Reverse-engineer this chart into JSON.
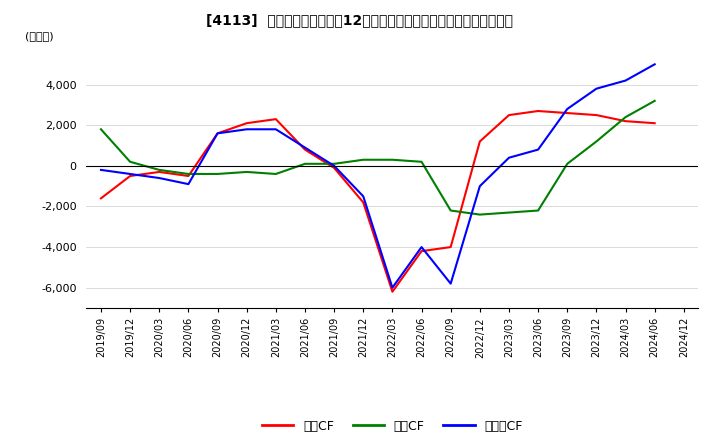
{
  "title": "[4113]  キャッシュフローの12か月移動合計の対前年同期増減額の推移",
  "ylabel": "(百万円)",
  "ylim": [
    -7000,
    6000
  ],
  "yticks": [
    -6000,
    -4000,
    -2000,
    0,
    2000,
    4000
  ],
  "legend_labels": [
    "営業CF",
    "投資CF",
    "フリーCF"
  ],
  "line_colors": [
    "#ff0000",
    "#008000",
    "#0000ff"
  ],
  "x_labels": [
    "2019/09",
    "2019/12",
    "2020/03",
    "2020/06",
    "2020/09",
    "2020/12",
    "2021/03",
    "2021/06",
    "2021/09",
    "2021/12",
    "2022/03",
    "2022/06",
    "2022/09",
    "2022/12",
    "2023/03",
    "2023/06",
    "2023/09",
    "2023/12",
    "2024/03",
    "2024/06",
    "2024/12"
  ],
  "operating_cf": [
    -1600,
    -500,
    -300,
    -500,
    1600,
    2100,
    2300,
    800,
    -100,
    -1800,
    -6200,
    -4200,
    -4000,
    1200,
    2500,
    2700,
    2600,
    2500,
    2200,
    2100,
    null
  ],
  "investing_cf": [
    1800,
    200,
    -200,
    -400,
    -400,
    -300,
    -400,
    100,
    100,
    300,
    300,
    200,
    -2200,
    -2400,
    -2300,
    -2200,
    100,
    1200,
    2400,
    3200,
    null
  ],
  "free_cf": [
    -200,
    -400,
    -600,
    -900,
    1600,
    1800,
    1800,
    900,
    0,
    -1500,
    -6000,
    -4000,
    -5800,
    -1000,
    400,
    800,
    2800,
    3800,
    4200,
    5000,
    null
  ],
  "background_color": "#ffffff",
  "grid_color": "#cccccc"
}
